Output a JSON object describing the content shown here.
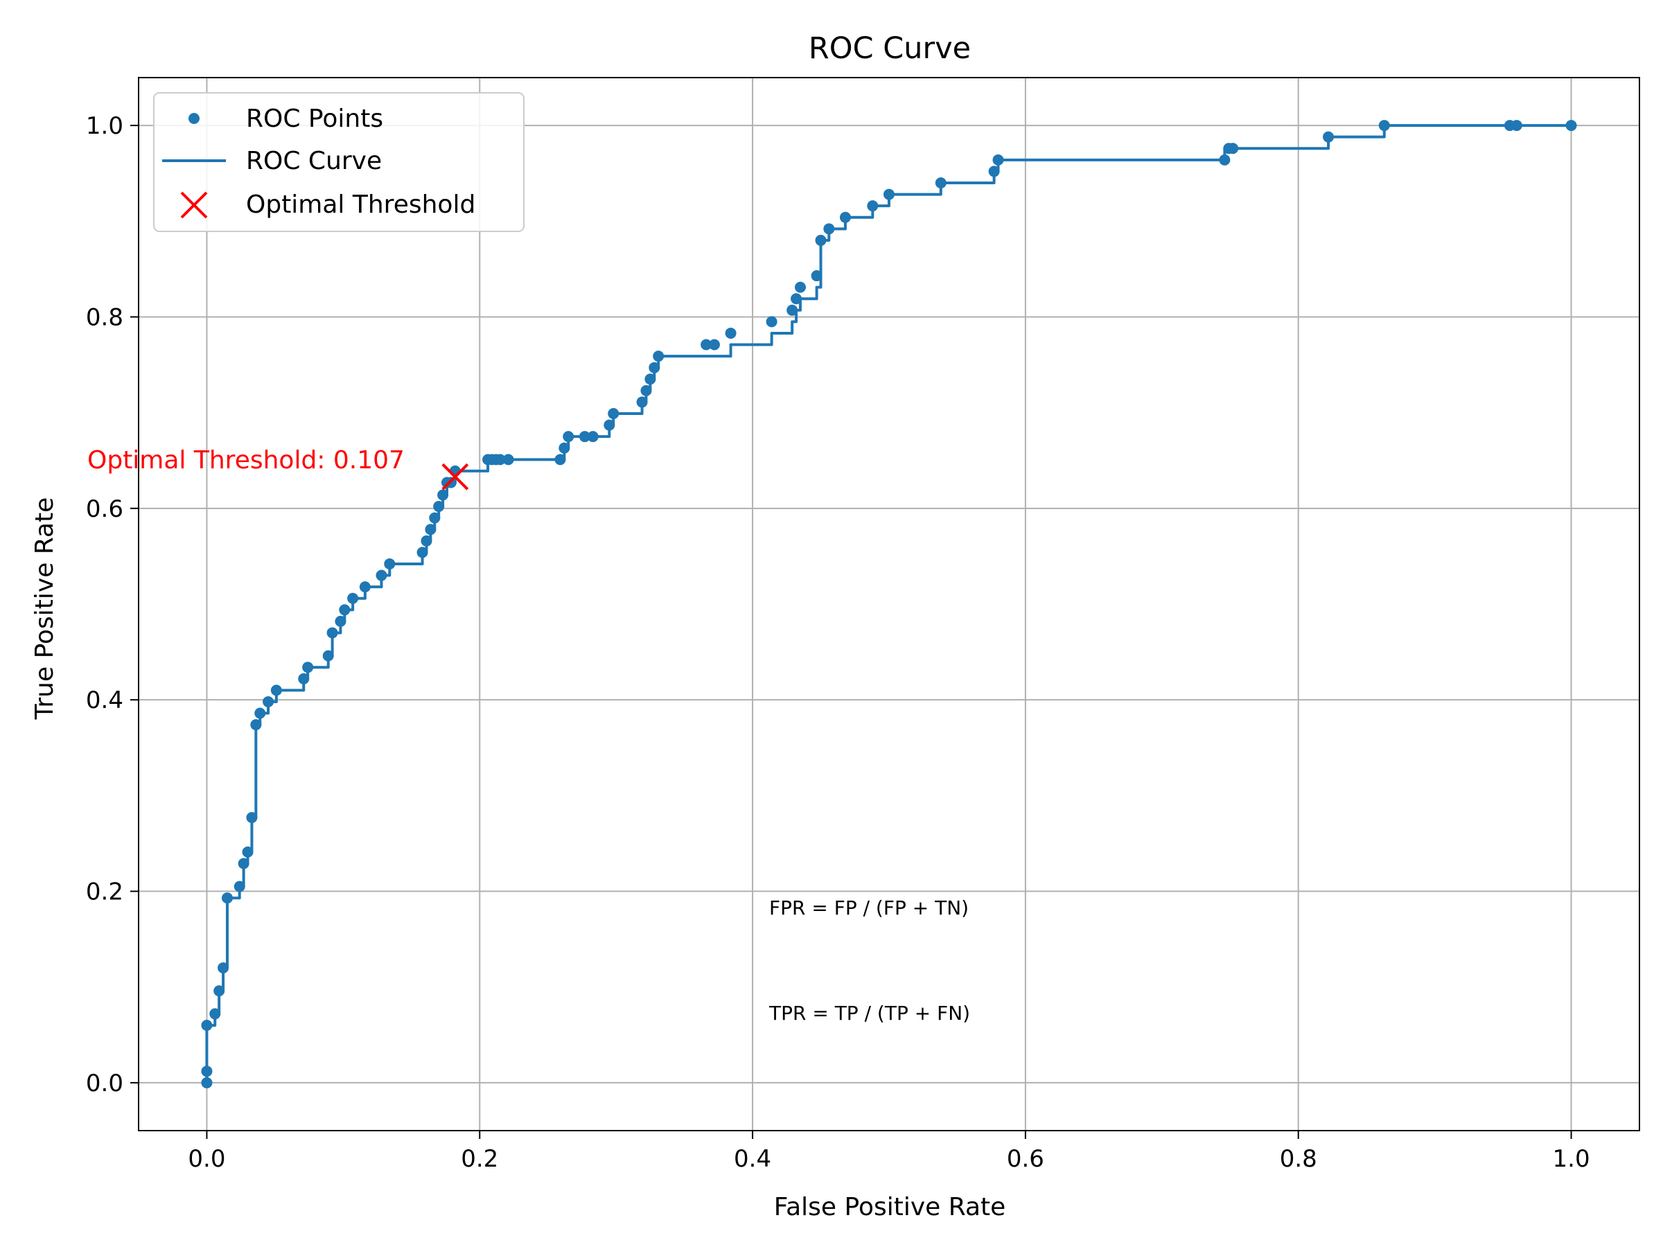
{
  "chart_data": {
    "type": "line",
    "title": "ROC Curve",
    "xlabel": "False Positive Rate",
    "ylabel": "True Positive Rate",
    "xlim": [
      -0.05,
      1.05
    ],
    "ylim": [
      -0.05,
      1.05
    ],
    "grid": true,
    "x_ticks": [
      "0.0",
      "0.2",
      "0.4",
      "0.6",
      "0.8",
      "1.0"
    ],
    "y_ticks": [
      "0.0",
      "0.2",
      "0.4",
      "0.6",
      "0.8",
      "1.0"
    ],
    "legend": {
      "placement": "top-left",
      "entries": [
        "ROC Points",
        "ROC Curve",
        "Optimal Threshold"
      ]
    },
    "colors": {
      "series": "#1f77b4",
      "optimal": "#ff0000"
    },
    "series": [
      {
        "name": "ROC Curve",
        "x": [
          0.0,
          0.0,
          0.0,
          0.006,
          0.006,
          0.009,
          0.009,
          0.012,
          0.012,
          0.015,
          0.015,
          0.024,
          0.024,
          0.027,
          0.027,
          0.03,
          0.03,
          0.033,
          0.033,
          0.036,
          0.036,
          0.039,
          0.039,
          0.045,
          0.045,
          0.051,
          0.051,
          0.071,
          0.071,
          0.074,
          0.074,
          0.089,
          0.089,
          0.092,
          0.092,
          0.098,
          0.098,
          0.101,
          0.101,
          0.107,
          0.107,
          0.116,
          0.116,
          0.128,
          0.128,
          0.134,
          0.134,
          0.158,
          0.158,
          0.161,
          0.161,
          0.164,
          0.164,
          0.167,
          0.167,
          0.17,
          0.17,
          0.173,
          0.173,
          0.176,
          0.176,
          0.179,
          0.179,
          0.182,
          0.182,
          0.206,
          0.206,
          0.209,
          0.209,
          0.262,
          0.262,
          0.265,
          0.265,
          0.295,
          0.295,
          0.298,
          0.298,
          0.319,
          0.319,
          0.322,
          0.322,
          0.325,
          0.325,
          0.328,
          0.328,
          0.331,
          0.331,
          0.384,
          0.384,
          0.414,
          0.414,
          0.429,
          0.429,
          0.432,
          0.432,
          0.435,
          0.435,
          0.447,
          0.447,
          0.45,
          0.45,
          0.456,
          0.456,
          0.468,
          0.468,
          0.488,
          0.488,
          0.5,
          0.5,
          0.538,
          0.538,
          0.577,
          0.577,
          0.58,
          0.58,
          0.746,
          0.746,
          0.822,
          0.822,
          0.863,
          0.863,
          1.0
        ],
        "y": [
          0.0,
          0.012,
          0.06,
          0.06,
          0.072,
          0.072,
          0.096,
          0.096,
          0.12,
          0.12,
          0.193,
          0.193,
          0.205,
          0.205,
          0.229,
          0.229,
          0.241,
          0.241,
          0.277,
          0.277,
          0.374,
          0.374,
          0.386,
          0.386,
          0.398,
          0.398,
          0.41,
          0.41,
          0.422,
          0.422,
          0.434,
          0.434,
          0.446,
          0.446,
          0.47,
          0.47,
          0.482,
          0.482,
          0.494,
          0.494,
          0.506,
          0.506,
          0.518,
          0.518,
          0.53,
          0.53,
          0.542,
          0.542,
          0.554,
          0.554,
          0.566,
          0.566,
          0.578,
          0.578,
          0.59,
          0.59,
          0.602,
          0.602,
          0.614,
          0.614,
          0.627,
          0.627,
          0.627,
          0.627,
          0.639,
          0.639,
          0.651,
          0.651,
          0.651,
          0.651,
          0.663,
          0.663,
          0.675,
          0.675,
          0.687,
          0.687,
          0.699,
          0.699,
          0.711,
          0.711,
          0.723,
          0.723,
          0.735,
          0.735,
          0.747,
          0.747,
          0.759,
          0.759,
          0.771,
          0.771,
          0.783,
          0.783,
          0.795,
          0.795,
          0.807,
          0.807,
          0.819,
          0.819,
          0.831,
          0.831,
          0.88,
          0.88,
          0.892,
          0.892,
          0.904,
          0.904,
          0.916,
          0.916,
          0.928,
          0.928,
          0.94,
          0.94,
          0.952,
          0.952,
          0.964,
          0.964,
          0.976,
          0.976,
          0.988,
          0.988,
          1.0,
          1.0
        ]
      },
      {
        "name": "ROC Points",
        "x": [
          0.0,
          0.0,
          0.0,
          0.006,
          0.009,
          0.012,
          0.015,
          0.024,
          0.027,
          0.03,
          0.033,
          0.036,
          0.039,
          0.045,
          0.051,
          0.071,
          0.074,
          0.089,
          0.092,
          0.098,
          0.101,
          0.107,
          0.116,
          0.128,
          0.134,
          0.158,
          0.161,
          0.164,
          0.167,
          0.17,
          0.173,
          0.176,
          0.179,
          0.182,
          0.206,
          0.209,
          0.212,
          0.215,
          0.221,
          0.259,
          0.262,
          0.265,
          0.277,
          0.283,
          0.295,
          0.298,
          0.319,
          0.322,
          0.325,
          0.328,
          0.331,
          0.366,
          0.372,
          0.384,
          0.414,
          0.429,
          0.432,
          0.435,
          0.447,
          0.45,
          0.456,
          0.468,
          0.488,
          0.5,
          0.538,
          0.577,
          0.58,
          0.746,
          0.749,
          0.752,
          0.822,
          0.863,
          0.955,
          0.96,
          1.0
        ],
        "y": [
          0.0,
          0.012,
          0.06,
          0.072,
          0.096,
          0.12,
          0.193,
          0.205,
          0.229,
          0.241,
          0.277,
          0.374,
          0.386,
          0.398,
          0.41,
          0.422,
          0.434,
          0.446,
          0.47,
          0.482,
          0.494,
          0.506,
          0.518,
          0.53,
          0.542,
          0.554,
          0.566,
          0.578,
          0.59,
          0.602,
          0.614,
          0.627,
          0.627,
          0.639,
          0.651,
          0.651,
          0.651,
          0.651,
          0.651,
          0.651,
          0.663,
          0.675,
          0.675,
          0.675,
          0.687,
          0.699,
          0.711,
          0.723,
          0.735,
          0.747,
          0.759,
          0.771,
          0.771,
          0.783,
          0.795,
          0.807,
          0.819,
          0.831,
          0.843,
          0.88,
          0.892,
          0.904,
          0.916,
          0.928,
          0.94,
          0.952,
          0.964,
          0.964,
          0.976,
          0.976,
          0.988,
          1.0,
          1.0,
          1.0,
          1.0
        ]
      }
    ],
    "optimal_point": {
      "x": 0.182,
      "y": 0.633,
      "label": "Optimal Threshold: 0.107"
    },
    "annotations": [
      "FPR = FP / (FP + TN)",
      "TPR = TP / (TP + FN)"
    ]
  }
}
